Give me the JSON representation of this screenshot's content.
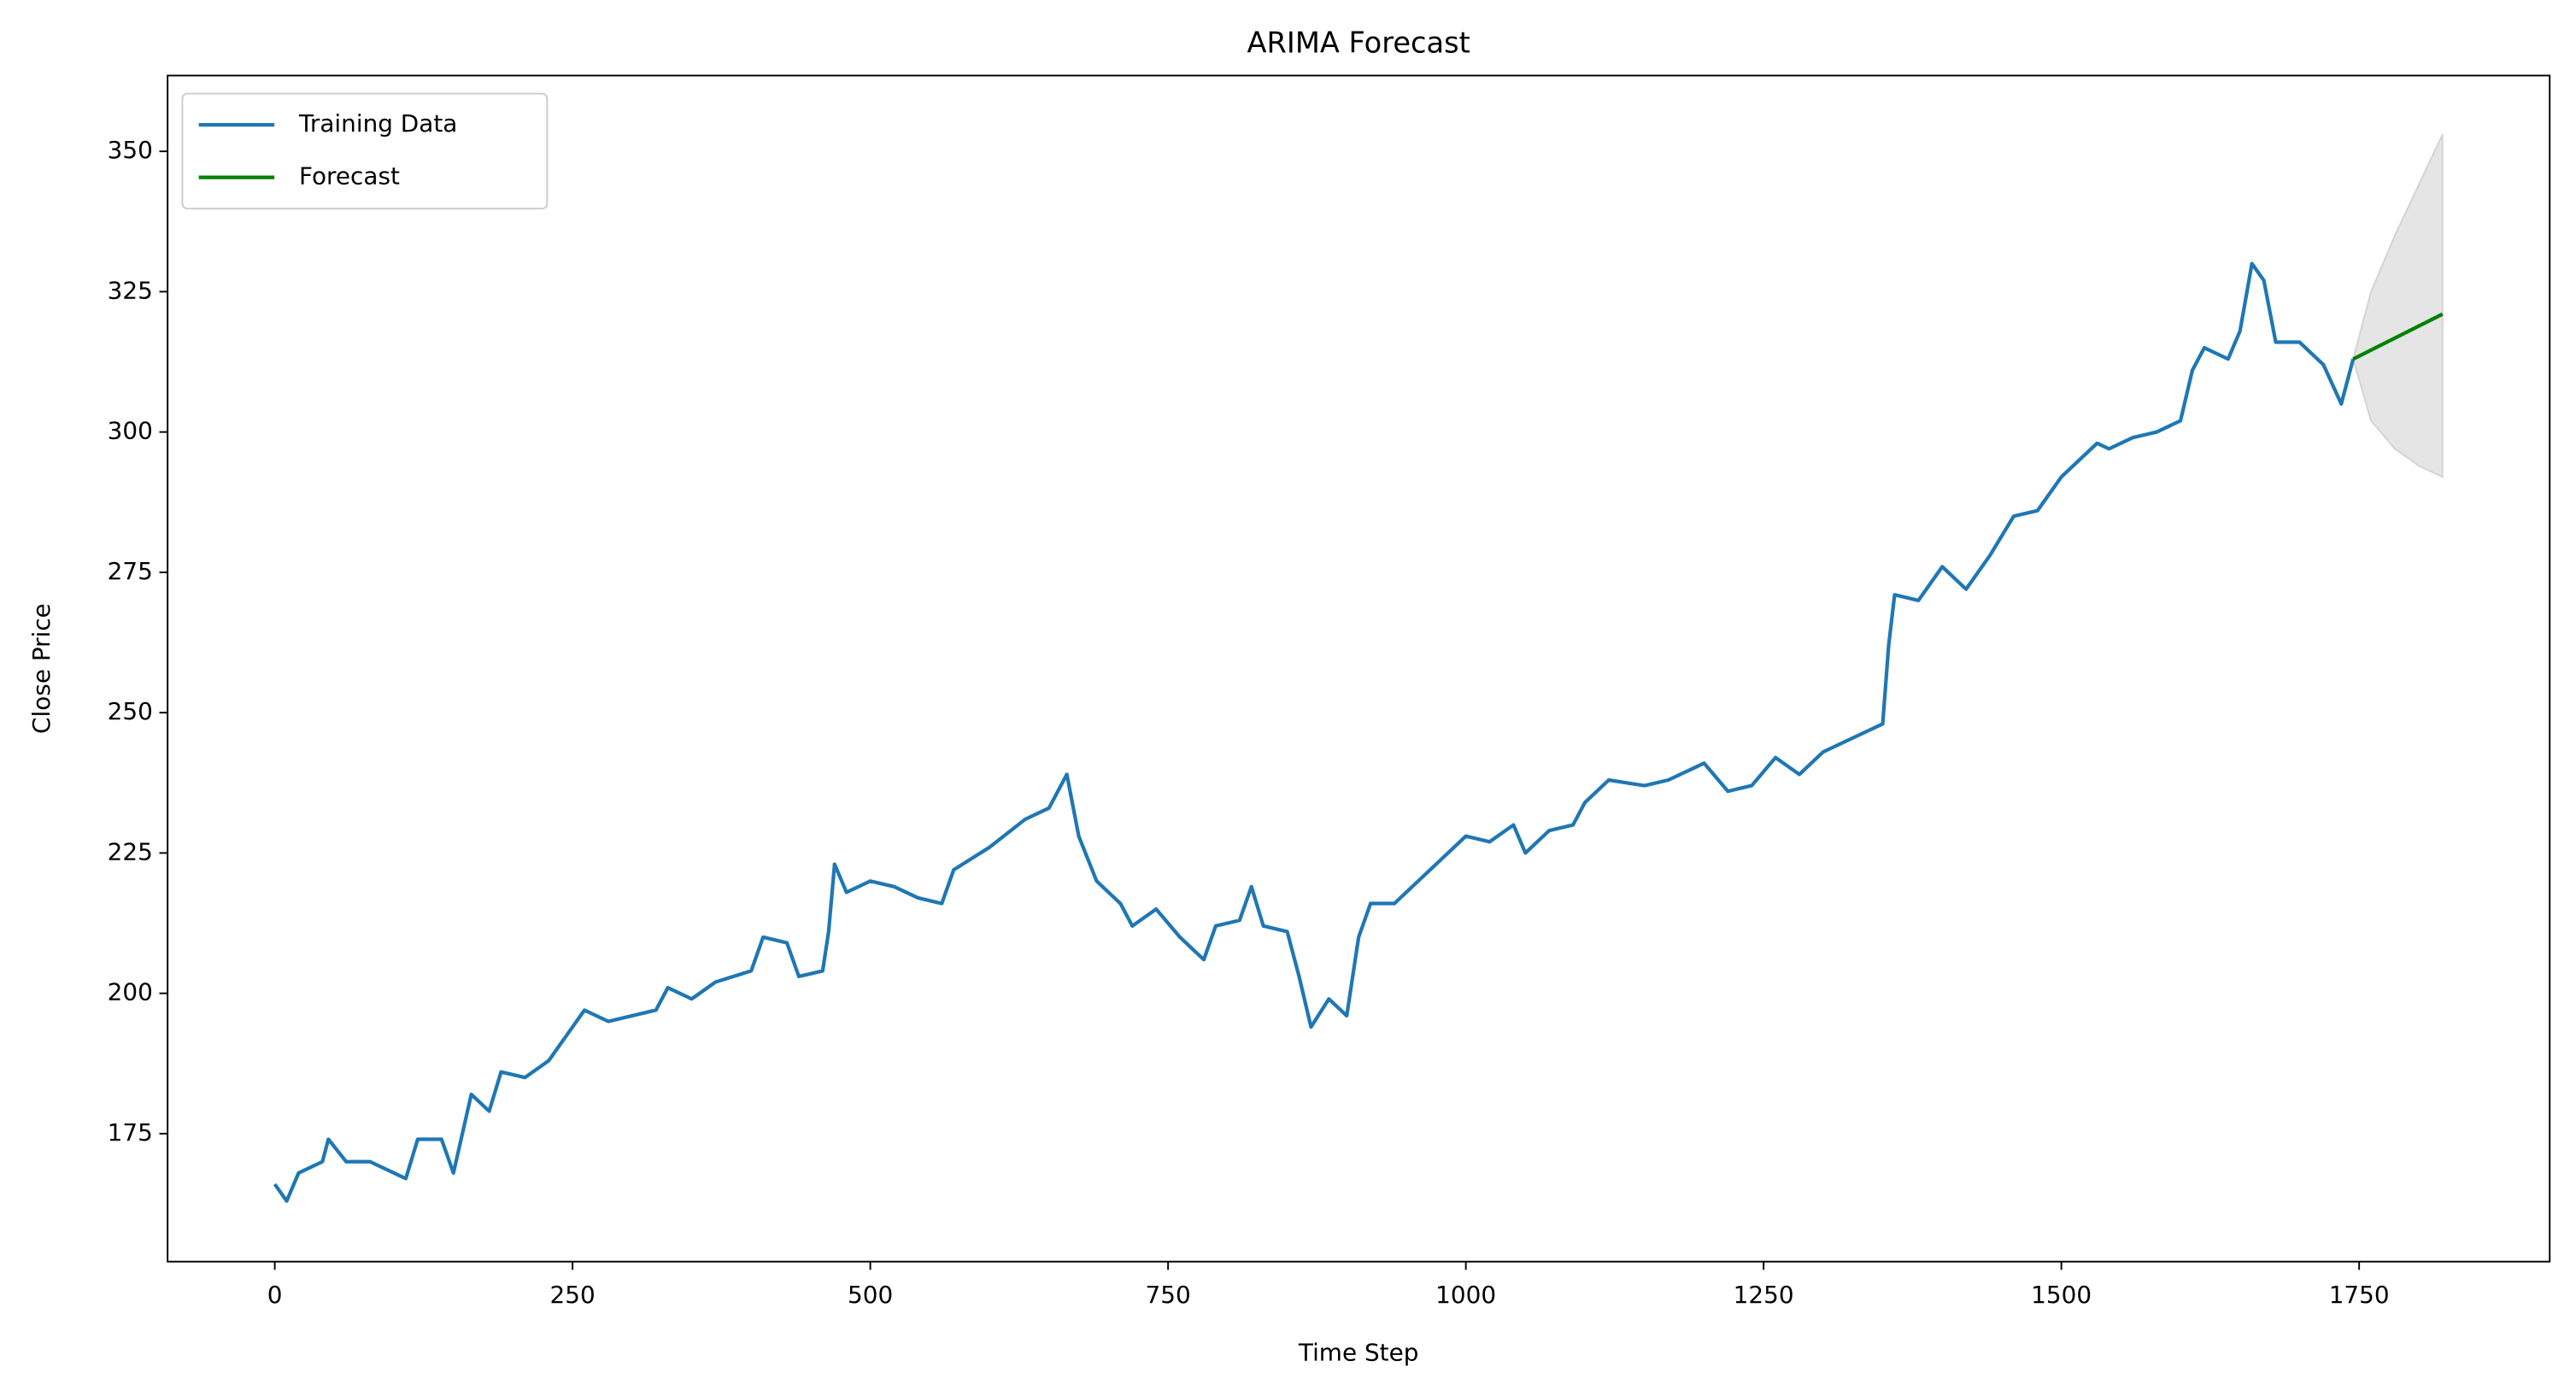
{
  "chart_data": {
    "type": "line",
    "title": "ARIMA Forecast",
    "x_label": "Time Step",
    "y_label": "Close Price",
    "xlim": [
      -90,
      1910
    ],
    "ylim": [
      152.2,
      363.5
    ],
    "xticks": [
      0,
      250,
      500,
      750,
      1000,
      1250,
      1500,
      1750
    ],
    "yticks": [
      175,
      200,
      225,
      250,
      275,
      300,
      325,
      350
    ],
    "legend": "upper left",
    "series": [
      {
        "name": "Training Data",
        "color": "#1f77b4",
        "x": [
          0,
          10,
          20,
          40,
          45,
          60,
          80,
          100,
          110,
          120,
          140,
          150,
          165,
          180,
          190,
          210,
          230,
          250,
          260,
          280,
          300,
          320,
          330,
          350,
          370,
          400,
          410,
          430,
          440,
          460,
          465,
          470,
          480,
          500,
          520,
          540,
          560,
          570,
          600,
          630,
          650,
          665,
          675,
          690,
          710,
          720,
          740,
          760,
          780,
          790,
          810,
          820,
          830,
          850,
          860,
          870,
          885,
          900,
          910,
          920,
          940,
          960,
          980,
          1000,
          1020,
          1040,
          1050,
          1070,
          1090,
          1100,
          1120,
          1150,
          1170,
          1200,
          1220,
          1240,
          1260,
          1280,
          1300,
          1320,
          1340,
          1350,
          1355,
          1360,
          1380,
          1400,
          1420,
          1440,
          1460,
          1480,
          1500,
          1520,
          1530,
          1540,
          1560,
          1580,
          1600,
          1610,
          1620,
          1640,
          1650,
          1660,
          1670,
          1680,
          1700,
          1720,
          1735,
          1745
        ],
        "values": [
          166,
          163,
          168,
          170,
          174,
          170,
          170,
          168,
          167,
          174,
          174,
          168,
          182,
          179,
          186,
          185,
          188,
          194,
          197,
          195,
          196,
          197,
          201,
          199,
          202,
          204,
          210,
          209,
          203,
          204,
          211,
          223,
          218,
          220,
          219,
          217,
          216,
          222,
          226,
          231,
          233,
          239,
          228,
          220,
          216,
          212,
          215,
          210,
          206,
          212,
          213,
          219,
          212,
          211,
          203,
          194,
          199,
          196,
          210,
          216,
          216,
          220,
          224,
          228,
          227,
          230,
          225,
          229,
          230,
          234,
          238,
          237,
          238,
          241,
          236,
          237,
          242,
          239,
          243,
          245,
          247,
          248,
          262,
          271,
          270,
          276,
          272,
          278,
          285,
          286,
          292,
          296,
          298,
          297,
          299,
          300,
          302,
          311,
          315,
          313,
          318,
          330,
          327,
          316,
          316,
          312,
          305,
          313
        ]
      },
      {
        "name": "Forecast",
        "color": "#008000",
        "x": [
          1745,
          1820
        ],
        "values": [
          313,
          321
        ]
      }
    ],
    "band": {
      "color": "#d3d3d3",
      "x": [
        1745,
        1760,
        1780,
        1800,
        1820
      ],
      "upper": [
        313,
        325,
        335,
        344,
        353
      ],
      "lower": [
        313,
        302,
        297,
        294,
        292
      ]
    }
  }
}
